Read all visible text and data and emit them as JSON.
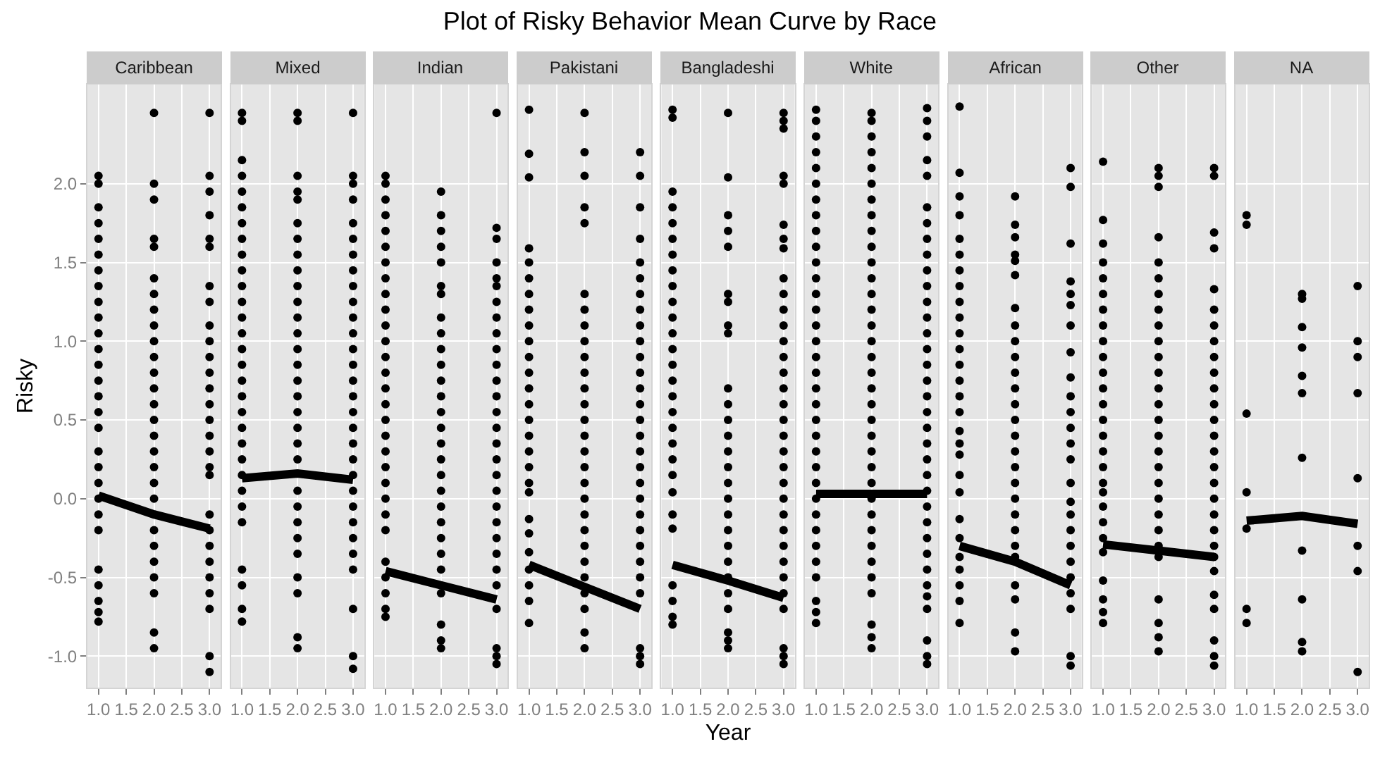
{
  "chart_data": [
    {
      "type": "scatter",
      "subtitle": "Caribbean",
      "ylabel": "Risky",
      "xlim": [
        0.8,
        3.2
      ],
      "ylim": [
        -1.2,
        2.63
      ],
      "xticks": [
        {
          "value": 1,
          "label": "1.0"
        },
        {
          "value": 1.5,
          "label": "1.5"
        },
        {
          "value": 2,
          "label": "2.0"
        },
        {
          "value": 2.5,
          "label": "2.5"
        },
        {
          "value": 3,
          "label": "3.0"
        }
      ],
      "yticks": [
        {
          "value": -1,
          "label": "-1.0"
        },
        {
          "value": -0.5,
          "label": "-0.5"
        },
        {
          "value": 0,
          "label": "0.0"
        },
        {
          "value": 0.5,
          "label": "0.5"
        },
        {
          "value": 1,
          "label": "1.0"
        },
        {
          "value": 1.5,
          "label": "1.5"
        },
        {
          "value": 2,
          "label": "2.0"
        }
      ],
      "grid": true,
      "marker": "circle",
      "series": [
        {
          "type": "scatter",
          "color": "#000000",
          "x": [
            1,
            1,
            1,
            1,
            1,
            1,
            1,
            1,
            1,
            1,
            1,
            1,
            1,
            1,
            1,
            1,
            1,
            1,
            1,
            1,
            1,
            1,
            1,
            1,
            1,
            1,
            1,
            1
          ],
          "values": [
            2.05,
            2.0,
            1.85,
            1.75,
            1.65,
            1.55,
            1.45,
            1.35,
            1.25,
            1.15,
            1.05,
            0.95,
            0.85,
            0.75,
            0.65,
            0.55,
            0.45,
            0.3,
            0.2,
            0.1,
            0.0,
            -0.1,
            -0.2,
            -0.45,
            -0.55,
            -0.65,
            -0.72,
            -0.78
          ]
        },
        {
          "type": "scatter",
          "color": "#000000",
          "x": [
            2,
            2,
            2,
            2,
            2,
            2,
            2,
            2,
            2,
            2,
            2,
            2,
            2,
            2,
            2,
            2,
            2,
            2,
            2,
            2,
            2,
            2,
            2,
            2,
            2,
            2,
            2
          ],
          "values": [
            2.45,
            2.0,
            1.9,
            1.65,
            1.6,
            1.4,
            1.3,
            1.2,
            1.1,
            1.0,
            0.9,
            0.8,
            0.7,
            0.6,
            0.5,
            0.4,
            0.3,
            0.2,
            0.1,
            0.0,
            -0.2,
            -0.3,
            -0.4,
            -0.5,
            -0.6,
            -0.85,
            -0.95
          ]
        },
        {
          "type": "scatter",
          "color": "#000000",
          "x": [
            3,
            3,
            3,
            3,
            3,
            3,
            3,
            3,
            3,
            3,
            3,
            3,
            3,
            3,
            3,
            3,
            3,
            3,
            3,
            3,
            3,
            3,
            3,
            3,
            3,
            3,
            3,
            3
          ],
          "values": [
            2.45,
            2.05,
            1.95,
            1.8,
            1.65,
            1.6,
            1.35,
            1.25,
            1.1,
            1.0,
            0.9,
            0.8,
            0.7,
            0.6,
            0.5,
            0.4,
            0.3,
            0.2,
            0.15,
            -0.1,
            -0.2,
            -0.3,
            -0.4,
            -0.5,
            -0.6,
            -0.7,
            -1.0,
            -1.1
          ]
        },
        {
          "type": "line",
          "marker": "none",
          "color": "#000000",
          "x": [
            1,
            2,
            3
          ],
          "values": [
            0.02,
            -0.1,
            -0.19
          ]
        }
      ]
    },
    {
      "type": "scatter",
      "subtitle": "Mixed",
      "tick_labels": "x",
      "xlim": [
        0.8,
        3.2
      ],
      "ylim": [
        -1.2,
        2.63
      ],
      "xticks": [
        {
          "value": 1,
          "label": "1.0"
        },
        {
          "value": 1.5,
          "label": "1.5"
        },
        {
          "value": 2,
          "label": "2.0"
        },
        {
          "value": 2.5,
          "label": "2.5"
        },
        {
          "value": 3,
          "label": "3.0"
        }
      ],
      "yticks": [
        -1,
        -0.5,
        0,
        0.5,
        1,
        1.5,
        2
      ],
      "grid": true,
      "marker": "circle",
      "series": [
        {
          "type": "scatter",
          "color": "#000000",
          "x": [
            1,
            1,
            1,
            1,
            1,
            1,
            1,
            1,
            1,
            1,
            1,
            1,
            1,
            1,
            1,
            1,
            1,
            1,
            1,
            1,
            1,
            1,
            1,
            1,
            1,
            1,
            1,
            1,
            1,
            1
          ],
          "values": [
            2.45,
            2.4,
            2.15,
            2.05,
            1.95,
            1.85,
            1.75,
            1.65,
            1.55,
            1.45,
            1.35,
            1.25,
            1.15,
            1.05,
            0.95,
            0.85,
            0.75,
            0.65,
            0.55,
            0.45,
            0.35,
            0.25,
            0.15,
            0.05,
            -0.05,
            -0.15,
            -0.45,
            -0.55,
            -0.7,
            -0.78
          ]
        },
        {
          "type": "scatter",
          "color": "#000000",
          "x": [
            2,
            2,
            2,
            2,
            2,
            2,
            2,
            2,
            2,
            2,
            2,
            2,
            2,
            2,
            2,
            2,
            2,
            2,
            2,
            2,
            2,
            2,
            2,
            2,
            2,
            2,
            2,
            2,
            2,
            2
          ],
          "values": [
            2.45,
            2.4,
            2.05,
            1.95,
            1.9,
            1.75,
            1.65,
            1.55,
            1.45,
            1.35,
            1.25,
            1.15,
            1.05,
            0.95,
            0.85,
            0.75,
            0.65,
            0.55,
            0.45,
            0.35,
            0.25,
            0.05,
            -0.05,
            -0.15,
            -0.25,
            -0.35,
            -0.5,
            -0.6,
            -0.88,
            -0.95
          ]
        },
        {
          "type": "scatter",
          "color": "#000000",
          "x": [
            3,
            3,
            3,
            3,
            3,
            3,
            3,
            3,
            3,
            3,
            3,
            3,
            3,
            3,
            3,
            3,
            3,
            3,
            3,
            3,
            3,
            3,
            3,
            3,
            3,
            3,
            3,
            3,
            3,
            3
          ],
          "values": [
            2.45,
            2.05,
            2.0,
            1.9,
            1.75,
            1.65,
            1.55,
            1.45,
            1.35,
            1.25,
            1.15,
            1.05,
            0.95,
            0.85,
            0.75,
            0.65,
            0.55,
            0.45,
            0.35,
            0.25,
            0.15,
            0.05,
            -0.05,
            -0.15,
            -0.25,
            -0.35,
            -0.45,
            -0.7,
            -1.0,
            -1.08
          ]
        },
        {
          "type": "line",
          "marker": "none",
          "color": "#000000",
          "x": [
            1,
            2,
            3
          ],
          "values": [
            0.13,
            0.16,
            0.12
          ]
        }
      ]
    },
    {
      "type": "scatter",
      "subtitle": "Indian",
      "tick_labels": "x",
      "xlim": [
        0.8,
        3.2
      ],
      "ylim": [
        -1.2,
        2.63
      ],
      "xticks": [
        {
          "value": 1,
          "label": "1.0"
        },
        {
          "value": 1.5,
          "label": "1.5"
        },
        {
          "value": 2,
          "label": "2.0"
        },
        {
          "value": 2.5,
          "label": "2.5"
        },
        {
          "value": 3,
          "label": "3.0"
        }
      ],
      "yticks": [
        -1,
        -0.5,
        0,
        0.5,
        1,
        1.5,
        2
      ],
      "grid": true,
      "marker": "circle",
      "series": [
        {
          "type": "scatter",
          "color": "#000000",
          "x": [
            1,
            1,
            1,
            1,
            1,
            1,
            1,
            1,
            1,
            1,
            1,
            1,
            1,
            1,
            1,
            1,
            1,
            1,
            1,
            1,
            1,
            1,
            1,
            1,
            1,
            1,
            1,
            1,
            1
          ],
          "values": [
            2.05,
            2.0,
            1.9,
            1.8,
            1.7,
            1.6,
            1.5,
            1.4,
            1.3,
            1.2,
            1.1,
            1.0,
            0.9,
            0.8,
            0.7,
            0.6,
            0.5,
            0.4,
            0.3,
            0.2,
            0.1,
            0.0,
            -0.1,
            -0.2,
            -0.4,
            -0.5,
            -0.6,
            -0.7,
            -0.75
          ]
        },
        {
          "type": "scatter",
          "color": "#000000",
          "x": [
            2,
            2,
            2,
            2,
            2,
            2,
            2,
            2,
            2,
            2,
            2,
            2,
            2,
            2,
            2,
            2,
            2,
            2,
            2,
            2,
            2,
            2,
            2,
            2,
            2,
            2,
            2,
            2
          ],
          "values": [
            1.95,
            1.8,
            1.7,
            1.6,
            1.5,
            1.35,
            1.3,
            1.15,
            1.05,
            0.95,
            0.85,
            0.75,
            0.65,
            0.55,
            0.45,
            0.35,
            0.25,
            0.15,
            0.05,
            -0.05,
            -0.15,
            -0.25,
            -0.35,
            -0.45,
            -0.6,
            -0.8,
            -0.9,
            -0.95
          ]
        },
        {
          "type": "scatter",
          "color": "#000000",
          "x": [
            3,
            3,
            3,
            3,
            3,
            3,
            3,
            3,
            3,
            3,
            3,
            3,
            3,
            3,
            3,
            3,
            3,
            3,
            3,
            3,
            3,
            3,
            3,
            3,
            3,
            3,
            3,
            3,
            3
          ],
          "values": [
            2.45,
            1.72,
            1.65,
            1.5,
            1.4,
            1.35,
            1.25,
            1.15,
            1.05,
            0.95,
            0.85,
            0.75,
            0.65,
            0.55,
            0.45,
            0.35,
            0.25,
            0.15,
            0.05,
            -0.05,
            -0.15,
            -0.25,
            -0.35,
            -0.45,
            -0.55,
            -0.7,
            -0.95,
            -1.0,
            -1.05
          ]
        },
        {
          "type": "line",
          "marker": "none",
          "color": "#000000",
          "x": [
            1,
            2,
            3
          ],
          "values": [
            -0.46,
            -0.55,
            -0.64
          ]
        }
      ]
    },
    {
      "type": "scatter",
      "subtitle": "Pakistani",
      "tick_labels": "x",
      "xlim": [
        0.8,
        3.2
      ],
      "ylim": [
        -1.2,
        2.63
      ],
      "xticks": [
        {
          "value": 1,
          "label": "1.0"
        },
        {
          "value": 1.5,
          "label": "1.5"
        },
        {
          "value": 2,
          "label": "2.0"
        },
        {
          "value": 2.5,
          "label": "2.5"
        },
        {
          "value": 3,
          "label": "3.0"
        }
      ],
      "yticks": [
        -1,
        -0.5,
        0,
        0.5,
        1,
        1.5,
        2
      ],
      "grid": true,
      "marker": "circle",
      "series": [
        {
          "type": "scatter",
          "color": "#000000",
          "x": [
            1,
            1,
            1,
            1,
            1,
            1,
            1,
            1,
            1,
            1,
            1,
            1,
            1,
            1,
            1,
            1,
            1,
            1,
            1,
            1,
            1,
            1,
            1,
            1,
            1,
            1,
            1
          ],
          "values": [
            2.47,
            2.19,
            2.04,
            1.59,
            1.5,
            1.4,
            1.3,
            1.2,
            1.1,
            1.0,
            0.9,
            0.8,
            0.7,
            0.6,
            0.5,
            0.4,
            0.3,
            0.2,
            0.1,
            0.04,
            -0.13,
            -0.22,
            -0.34,
            -0.45,
            -0.55,
            -0.65,
            -0.79
          ]
        },
        {
          "type": "scatter",
          "color": "#000000",
          "x": [
            2,
            2,
            2,
            2,
            2,
            2,
            2,
            2,
            2,
            2,
            2,
            2,
            2,
            2,
            2,
            2,
            2,
            2,
            2,
            2,
            2,
            2,
            2,
            2,
            2,
            2,
            2,
            2
          ],
          "values": [
            2.45,
            2.2,
            2.05,
            1.85,
            1.75,
            1.3,
            1.2,
            1.1,
            1.0,
            0.9,
            0.8,
            0.7,
            0.6,
            0.5,
            0.4,
            0.3,
            0.2,
            0.1,
            0.0,
            -0.1,
            -0.2,
            -0.3,
            -0.4,
            -0.5,
            -0.6,
            -0.7,
            -0.85,
            -0.95
          ]
        },
        {
          "type": "scatter",
          "color": "#000000",
          "x": [
            3,
            3,
            3,
            3,
            3,
            3,
            3,
            3,
            3,
            3,
            3,
            3,
            3,
            3,
            3,
            3,
            3,
            3,
            3,
            3,
            3,
            3,
            3,
            3,
            3,
            3,
            3,
            3,
            3
          ],
          "values": [
            2.2,
            2.05,
            1.85,
            1.65,
            1.5,
            1.4,
            1.3,
            1.2,
            1.1,
            1.0,
            0.9,
            0.8,
            0.7,
            0.6,
            0.5,
            0.4,
            0.3,
            0.2,
            0.1,
            0.0,
            -0.1,
            -0.2,
            -0.3,
            -0.4,
            -0.5,
            -0.6,
            -0.95,
            -1.0,
            -1.05
          ]
        },
        {
          "type": "line",
          "marker": "none",
          "color": "#000000",
          "x": [
            1,
            2,
            3
          ],
          "values": [
            -0.42,
            -0.56,
            -0.7
          ]
        }
      ]
    },
    {
      "type": "scatter",
      "title": "Plot of Risky Behavior Mean Curve by Race",
      "subtitle": "Bangladeshi",
      "xlabel": "Year",
      "tick_labels": "x",
      "xlim": [
        0.8,
        3.2
      ],
      "ylim": [
        -1.2,
        2.63
      ],
      "xticks": [
        {
          "value": 1,
          "label": "1.0"
        },
        {
          "value": 1.5,
          "label": "1.5"
        },
        {
          "value": 2,
          "label": "2.0"
        },
        {
          "value": 2.5,
          "label": "2.5"
        },
        {
          "value": 3,
          "label": "3.0"
        }
      ],
      "yticks": [
        -1,
        -0.5,
        0,
        0.5,
        1,
        1.5,
        2
      ],
      "grid": true,
      "marker": "circle",
      "series": [
        {
          "type": "scatter",
          "color": "#000000",
          "x": [
            1,
            1,
            1,
            1,
            1,
            1,
            1,
            1,
            1,
            1,
            1,
            1,
            1,
            1,
            1,
            1,
            1,
            1,
            1,
            1,
            1,
            1,
            1,
            1,
            1,
            1,
            1,
            1
          ],
          "values": [
            2.47,
            2.42,
            1.95,
            1.85,
            1.75,
            1.65,
            1.55,
            1.45,
            1.35,
            1.25,
            1.15,
            1.05,
            0.95,
            0.85,
            0.75,
            0.65,
            0.55,
            0.45,
            0.35,
            0.25,
            0.15,
            0.04,
            -0.1,
            -0.19,
            -0.55,
            -0.65,
            -0.75,
            -0.8
          ]
        },
        {
          "type": "scatter",
          "color": "#000000",
          "x": [
            2,
            2,
            2,
            2,
            2,
            2,
            2,
            2,
            2,
            2,
            2,
            2,
            2,
            2,
            2,
            2,
            2,
            2,
            2,
            2,
            2,
            2,
            2,
            2,
            2,
            2,
            2
          ],
          "values": [
            2.45,
            2.04,
            1.8,
            1.7,
            1.6,
            1.3,
            1.25,
            1.1,
            1.05,
            0.7,
            0.6,
            0.5,
            0.4,
            0.3,
            0.2,
            0.1,
            0.0,
            -0.1,
            -0.2,
            -0.3,
            -0.4,
            -0.5,
            -0.6,
            -0.7,
            -0.85,
            -0.9,
            -0.95
          ]
        },
        {
          "type": "scatter",
          "color": "#000000",
          "x": [
            3,
            3,
            3,
            3,
            3,
            3,
            3,
            3,
            3,
            3,
            3,
            3,
            3,
            3,
            3,
            3,
            3,
            3,
            3,
            3,
            3,
            3,
            3,
            3,
            3,
            3,
            3,
            3,
            3,
            3,
            3,
            3,
            3
          ],
          "values": [
            2.45,
            2.4,
            2.35,
            2.05,
            2.0,
            1.74,
            1.65,
            1.59,
            1.4,
            1.3,
            1.2,
            1.1,
            1.0,
            0.9,
            0.8,
            0.7,
            0.6,
            0.5,
            0.4,
            0.3,
            0.2,
            0.1,
            0.0,
            -0.1,
            -0.2,
            -0.3,
            -0.4,
            -0.5,
            -0.6,
            -0.7,
            -0.95,
            -1.0,
            -1.05
          ]
        },
        {
          "type": "line",
          "marker": "none",
          "color": "#000000",
          "x": [
            1,
            2,
            3
          ],
          "values": [
            -0.42,
            -0.52,
            -0.63
          ]
        }
      ]
    },
    {
      "type": "scatter",
      "subtitle": "White",
      "tick_labels": "x",
      "xlim": [
        0.8,
        3.2
      ],
      "ylim": [
        -1.2,
        2.63
      ],
      "xticks": [
        {
          "value": 1,
          "label": "1.0"
        },
        {
          "value": 1.5,
          "label": "1.5"
        },
        {
          "value": 2,
          "label": "2.0"
        },
        {
          "value": 2.5,
          "label": "2.5"
        },
        {
          "value": 3,
          "label": "3.0"
        }
      ],
      "yticks": [
        -1,
        -0.5,
        0,
        0.5,
        1,
        1.5,
        2
      ],
      "grid": true,
      "marker": "circle",
      "series": [
        {
          "type": "scatter",
          "color": "#000000",
          "x": [
            1,
            1,
            1,
            1,
            1,
            1,
            1,
            1,
            1,
            1,
            1,
            1,
            1,
            1,
            1,
            1,
            1,
            1,
            1,
            1,
            1,
            1,
            1,
            1,
            1,
            1,
            1,
            1,
            1,
            1,
            1,
            1,
            1,
            1
          ],
          "values": [
            2.47,
            2.4,
            2.3,
            2.2,
            2.1,
            2.0,
            1.9,
            1.8,
            1.7,
            1.6,
            1.5,
            1.4,
            1.3,
            1.2,
            1.1,
            1.0,
            0.9,
            0.8,
            0.7,
            0.6,
            0.5,
            0.4,
            0.3,
            0.2,
            0.1,
            0.0,
            -0.1,
            -0.2,
            -0.3,
            -0.4,
            -0.5,
            -0.65,
            -0.72,
            -0.79
          ]
        },
        {
          "type": "scatter",
          "color": "#000000",
          "x": [
            2,
            2,
            2,
            2,
            2,
            2,
            2,
            2,
            2,
            2,
            2,
            2,
            2,
            2,
            2,
            2,
            2,
            2,
            2,
            2,
            2,
            2,
            2,
            2,
            2,
            2,
            2,
            2,
            2,
            2,
            2,
            2,
            2,
            2,
            2
          ],
          "values": [
            2.45,
            2.4,
            2.3,
            2.2,
            2.1,
            2.0,
            1.9,
            1.8,
            1.7,
            1.6,
            1.5,
            1.4,
            1.3,
            1.2,
            1.1,
            1.0,
            0.9,
            0.8,
            0.7,
            0.6,
            0.5,
            0.4,
            0.3,
            0.2,
            0.1,
            0.0,
            -0.1,
            -0.2,
            -0.3,
            -0.4,
            -0.5,
            -0.6,
            -0.8,
            -0.88,
            -0.95
          ]
        },
        {
          "type": "scatter",
          "color": "#000000",
          "x": [
            3,
            3,
            3,
            3,
            3,
            3,
            3,
            3,
            3,
            3,
            3,
            3,
            3,
            3,
            3,
            3,
            3,
            3,
            3,
            3,
            3,
            3,
            3,
            3,
            3,
            3,
            3,
            3,
            3,
            3,
            3,
            3,
            3,
            3,
            3
          ],
          "values": [
            2.48,
            2.4,
            2.3,
            2.15,
            2.05,
            1.85,
            1.75,
            1.65,
            1.55,
            1.45,
            1.35,
            1.25,
            1.15,
            1.05,
            0.95,
            0.85,
            0.75,
            0.65,
            0.55,
            0.45,
            0.35,
            0.25,
            0.15,
            0.05,
            -0.05,
            -0.15,
            -0.25,
            -0.35,
            -0.45,
            -0.55,
            -0.62,
            -0.7,
            -0.9,
            -1.0,
            -1.05
          ]
        },
        {
          "type": "line",
          "marker": "none",
          "color": "#000000",
          "x": [
            1,
            2,
            3
          ],
          "values": [
            0.03,
            0.03,
            0.03
          ]
        }
      ]
    },
    {
      "type": "scatter",
      "subtitle": "African",
      "tick_labels": "x",
      "xlim": [
        0.8,
        3.2
      ],
      "ylim": [
        -1.2,
        2.63
      ],
      "xticks": [
        {
          "value": 1,
          "label": "1.0"
        },
        {
          "value": 1.5,
          "label": "1.5"
        },
        {
          "value": 2,
          "label": "2.0"
        },
        {
          "value": 2.5,
          "label": "2.5"
        },
        {
          "value": 3,
          "label": "3.0"
        }
      ],
      "yticks": [
        -1,
        -0.5,
        0,
        0.5,
        1,
        1.5,
        2
      ],
      "grid": true,
      "marker": "circle",
      "series": [
        {
          "type": "scatter",
          "color": "#000000",
          "x": [
            1,
            1,
            1,
            1,
            1,
            1,
            1,
            1,
            1,
            1,
            1,
            1,
            1,
            1,
            1,
            1,
            1,
            1,
            1,
            1,
            1,
            1,
            1,
            1,
            1,
            1,
            1,
            1
          ],
          "values": [
            2.49,
            2.07,
            1.92,
            1.8,
            1.65,
            1.55,
            1.45,
            1.35,
            1.25,
            1.15,
            1.05,
            0.95,
            0.85,
            0.75,
            0.65,
            0.55,
            0.43,
            0.35,
            0.28,
            0.15,
            0.04,
            -0.13,
            -0.25,
            -0.37,
            -0.45,
            -0.55,
            -0.65,
            -0.79
          ]
        },
        {
          "type": "scatter",
          "color": "#000000",
          "x": [
            2,
            2,
            2,
            2,
            2,
            2,
            2,
            2,
            2,
            2,
            2,
            2,
            2,
            2,
            2,
            2,
            2,
            2,
            2,
            2,
            2,
            2,
            2,
            2,
            2,
            2,
            2
          ],
          "values": [
            1.92,
            1.74,
            1.66,
            1.55,
            1.51,
            1.42,
            1.21,
            1.1,
            1.0,
            0.9,
            0.8,
            0.7,
            0.6,
            0.5,
            0.4,
            0.3,
            0.2,
            0.1,
            0.0,
            -0.1,
            -0.2,
            -0.3,
            -0.37,
            -0.55,
            -0.64,
            -0.85,
            -0.97
          ]
        },
        {
          "type": "scatter",
          "color": "#000000",
          "x": [
            3,
            3,
            3,
            3,
            3,
            3,
            3,
            3,
            3,
            3,
            3,
            3,
            3,
            3,
            3,
            3,
            3,
            3,
            3,
            3,
            3,
            3,
            3,
            3,
            3
          ],
          "values": [
            2.1,
            1.98,
            1.62,
            1.38,
            1.3,
            1.23,
            1.1,
            0.93,
            0.77,
            0.65,
            0.55,
            0.45,
            0.35,
            0.25,
            0.1,
            -0.02,
            -0.1,
            -0.2,
            -0.3,
            -0.4,
            -0.5,
            -0.6,
            -0.7,
            -1.0,
            -1.06
          ]
        },
        {
          "type": "line",
          "marker": "none",
          "color": "#000000",
          "x": [
            1,
            2,
            3
          ],
          "values": [
            -0.3,
            -0.4,
            -0.55
          ]
        }
      ]
    },
    {
      "type": "scatter",
      "subtitle": "Other",
      "tick_labels": "x",
      "xlim": [
        0.8,
        3.2
      ],
      "ylim": [
        -1.2,
        2.63
      ],
      "xticks": [
        {
          "value": 1,
          "label": "1.0"
        },
        {
          "value": 1.5,
          "label": "1.5"
        },
        {
          "value": 2,
          "label": "2.0"
        },
        {
          "value": 2.5,
          "label": "2.5"
        },
        {
          "value": 3,
          "label": "3.0"
        }
      ],
      "yticks": [
        -1,
        -0.5,
        0,
        0.5,
        1,
        1.5,
        2
      ],
      "grid": true,
      "marker": "circle",
      "series": [
        {
          "type": "scatter",
          "color": "#000000",
          "x": [
            1,
            1,
            1,
            1,
            1,
            1,
            1,
            1,
            1,
            1,
            1,
            1,
            1,
            1,
            1,
            1,
            1,
            1,
            1,
            1,
            1,
            1,
            1,
            1,
            1,
            1,
            1
          ],
          "values": [
            2.14,
            1.77,
            1.62,
            1.5,
            1.4,
            1.3,
            1.2,
            1.1,
            1.0,
            0.9,
            0.8,
            0.7,
            0.6,
            0.5,
            0.4,
            0.3,
            0.2,
            0.1,
            0.04,
            -0.05,
            -0.15,
            -0.25,
            -0.34,
            -0.52,
            -0.64,
            -0.72,
            -0.79
          ]
        },
        {
          "type": "scatter",
          "color": "#000000",
          "x": [
            2,
            2,
            2,
            2,
            2,
            2,
            2,
            2,
            2,
            2,
            2,
            2,
            2,
            2,
            2,
            2,
            2,
            2,
            2,
            2,
            2,
            2,
            2,
            2,
            2,
            2,
            2,
            2
          ],
          "values": [
            2.1,
            2.05,
            1.98,
            1.66,
            1.5,
            1.4,
            1.3,
            1.2,
            1.1,
            1.0,
            0.9,
            0.8,
            0.7,
            0.6,
            0.5,
            0.4,
            0.3,
            0.2,
            0.1,
            0.0,
            -0.1,
            -0.2,
            -0.3,
            -0.37,
            -0.64,
            -0.79,
            -0.88,
            -0.97
          ]
        },
        {
          "type": "scatter",
          "color": "#000000",
          "x": [
            3,
            3,
            3,
            3,
            3,
            3,
            3,
            3,
            3,
            3,
            3,
            3,
            3,
            3,
            3,
            3,
            3,
            3,
            3,
            3,
            3,
            3,
            3,
            3,
            3,
            3,
            3,
            3
          ],
          "values": [
            2.1,
            2.05,
            1.69,
            1.59,
            1.33,
            1.2,
            1.1,
            1.0,
            0.9,
            0.8,
            0.7,
            0.6,
            0.5,
            0.4,
            0.3,
            0.2,
            0.1,
            0.0,
            -0.1,
            -0.2,
            -0.3,
            -0.37,
            -0.46,
            -0.61,
            -0.7,
            -0.9,
            -1.0,
            -1.06
          ]
        },
        {
          "type": "line",
          "marker": "none",
          "color": "#000000",
          "x": [
            1,
            2,
            3
          ],
          "values": [
            -0.29,
            -0.33,
            -0.37
          ]
        }
      ]
    },
    {
      "type": "scatter",
      "subtitle": "NA",
      "tick_labels": "x",
      "xlim": [
        0.8,
        3.2
      ],
      "ylim": [
        -1.2,
        2.63
      ],
      "xticks": [
        {
          "value": 1,
          "label": "1.0"
        },
        {
          "value": 1.5,
          "label": "1.5"
        },
        {
          "value": 2,
          "label": "2.0"
        },
        {
          "value": 2.5,
          "label": "2.5"
        },
        {
          "value": 3,
          "label": "3.0"
        }
      ],
      "yticks": [
        -1,
        -0.5,
        0,
        0.5,
        1,
        1.5,
        2
      ],
      "grid": true,
      "marker": "circle",
      "series": [
        {
          "type": "scatter",
          "color": "#000000",
          "x": [
            1,
            1,
            1,
            1,
            1,
            1,
            1
          ],
          "values": [
            1.8,
            1.74,
            0.54,
            0.04,
            -0.19,
            -0.7,
            -0.79
          ]
        },
        {
          "type": "scatter",
          "color": "#000000",
          "x": [
            2,
            2,
            2,
            2,
            2,
            2,
            2,
            2,
            2,
            2,
            2
          ],
          "values": [
            1.3,
            1.27,
            1.09,
            0.96,
            0.78,
            0.67,
            0.26,
            -0.33,
            -0.64,
            -0.91,
            -0.97
          ]
        },
        {
          "type": "scatter",
          "color": "#000000",
          "x": [
            3,
            3,
            3,
            3,
            3,
            3,
            3,
            3
          ],
          "values": [
            1.35,
            1.0,
            0.9,
            0.67,
            0.13,
            -0.3,
            -0.46,
            -1.1
          ]
        },
        {
          "type": "line",
          "marker": "none",
          "color": "#000000",
          "x": [
            1,
            2,
            3
          ],
          "values": [
            -0.14,
            -0.11,
            -0.16
          ]
        }
      ]
    }
  ]
}
